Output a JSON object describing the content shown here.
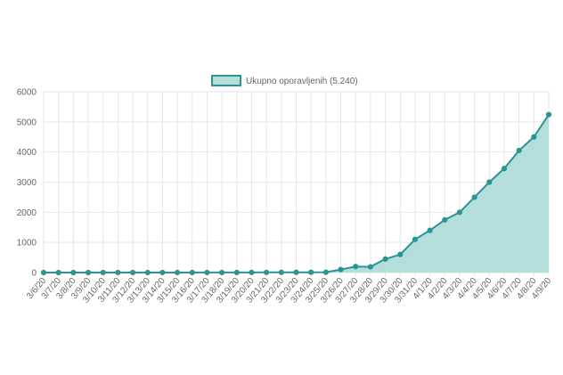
{
  "chart_data": {
    "type": "area",
    "legend": {
      "label": "Ukupno oporavljenih (5.240)",
      "position": "top-center"
    },
    "colors": {
      "line": "#2a9592",
      "fill": "#b3dedc",
      "grid": "#e6e6e6",
      "text": "#666666"
    },
    "grid": true,
    "ylim": [
      0,
      6000
    ],
    "yticks": [
      "0",
      "1000",
      "2000",
      "3000",
      "4000",
      "5000",
      "6000"
    ],
    "x": [
      "3/6/20",
      "3/7/20",
      "3/8/20",
      "3/9/20",
      "3/10/20",
      "3/11/20",
      "3/12/20",
      "3/13/20",
      "3/14/20",
      "3/15/20",
      "3/16/20",
      "3/17/20",
      "3/18/20",
      "3/19/20",
      "3/20/20",
      "3/21/20",
      "3/22/20",
      "3/23/20",
      "3/24/20",
      "3/25/20",
      "3/26/20",
      "3/27/20",
      "3/28/20",
      "3/29/20",
      "3/30/20",
      "3/31/20",
      "4/1/20",
      "4/2/20",
      "4/3/20",
      "4/4/20",
      "4/5/20",
      "4/6/20",
      "4/7/20",
      "4/8/20",
      "4/9/20"
    ],
    "series": [
      {
        "name": "Ukupno oporavljenih (5.240)",
        "values": [
          0,
          0,
          0,
          0,
          1,
          1,
          1,
          1,
          1,
          1,
          1,
          2,
          2,
          3,
          5,
          6,
          7,
          8,
          9,
          10,
          100,
          200,
          190,
          450,
          600,
          1100,
          1400,
          1750,
          2000,
          2500,
          3000,
          3450,
          4050,
          4500,
          5240
        ]
      }
    ]
  }
}
